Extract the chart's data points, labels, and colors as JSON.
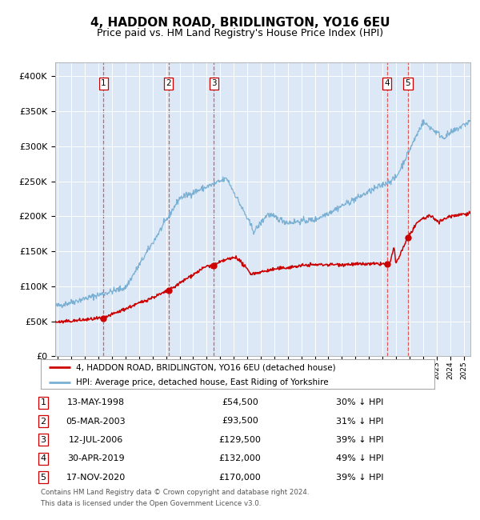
{
  "title": "4, HADDON ROAD, BRIDLINGTON, YO16 6EU",
  "subtitle": "Price paid vs. HM Land Registry's House Price Index (HPI)",
  "title_fontsize": 11,
  "subtitle_fontsize": 9,
  "bg_color": "#dce8f5",
  "red_line_color": "#cc0000",
  "blue_line_color": "#7ab0d4",
  "dashed_line_color": "#dd4444",
  "transactions": [
    {
      "num": 1,
      "date": "13-MAY-1998",
      "price": 54500,
      "pct": "30%",
      "x_year": 1998.37
    },
    {
      "num": 2,
      "date": "05-MAR-2003",
      "price": 93500,
      "pct": "31%",
      "x_year": 2003.18
    },
    {
      "num": 3,
      "date": "12-JUL-2006",
      "price": 129500,
      "pct": "39%",
      "x_year": 2006.53
    },
    {
      "num": 4,
      "date": "30-APR-2019",
      "price": 132000,
      "pct": "49%",
      "x_year": 2019.33
    },
    {
      "num": 5,
      "date": "17-NOV-2020",
      "price": 170000,
      "pct": "39%",
      "x_year": 2020.88
    }
  ],
  "legend_line1": "4, HADDON ROAD, BRIDLINGTON, YO16 6EU (detached house)",
  "legend_line2": "HPI: Average price, detached house, East Riding of Yorkshire",
  "footer1": "Contains HM Land Registry data © Crown copyright and database right 2024.",
  "footer2": "This data is licensed under the Open Government Licence v3.0.",
  "ylim": [
    0,
    420000
  ],
  "yticks": [
    0,
    50000,
    100000,
    150000,
    200000,
    250000,
    300000,
    350000,
    400000
  ],
  "ytick_labels": [
    "£0",
    "£50K",
    "£100K",
    "£150K",
    "£200K",
    "£250K",
    "£300K",
    "£350K",
    "£400K"
  ],
  "xlim_start": 1994.8,
  "xlim_end": 2025.5
}
